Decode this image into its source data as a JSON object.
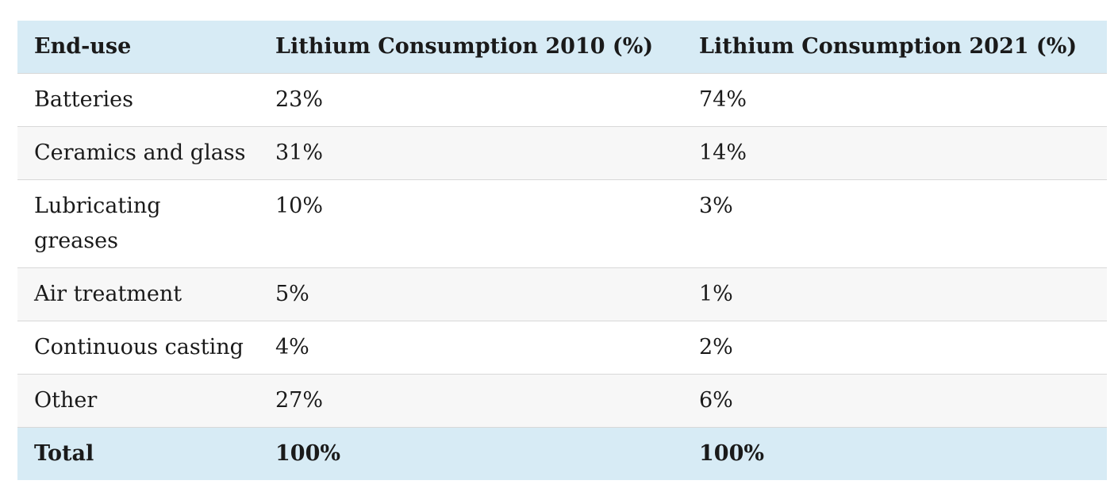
{
  "table": {
    "headers": [
      "End-use",
      "Lithium Consumption 2010 (%)",
      "Lithium Consumption 2021 (%)"
    ],
    "rows": [
      [
        "Batteries",
        "23%",
        "74%"
      ],
      [
        "Ceramics and glass",
        "31%",
        "14%"
      ],
      [
        "Lubricating greases",
        "10%",
        "3%"
      ],
      [
        "Air treatment",
        "5%",
        "1%"
      ],
      [
        "Continuous casting",
        "4%",
        "2%"
      ],
      [
        "Other",
        "27%",
        "6%"
      ]
    ],
    "total": [
      "Total",
      "100%",
      "100%"
    ]
  },
  "colors": {
    "header_bg": "#d7ebf5",
    "stripe_bg": "#f7f7f7",
    "border": "#d8d8d8"
  }
}
